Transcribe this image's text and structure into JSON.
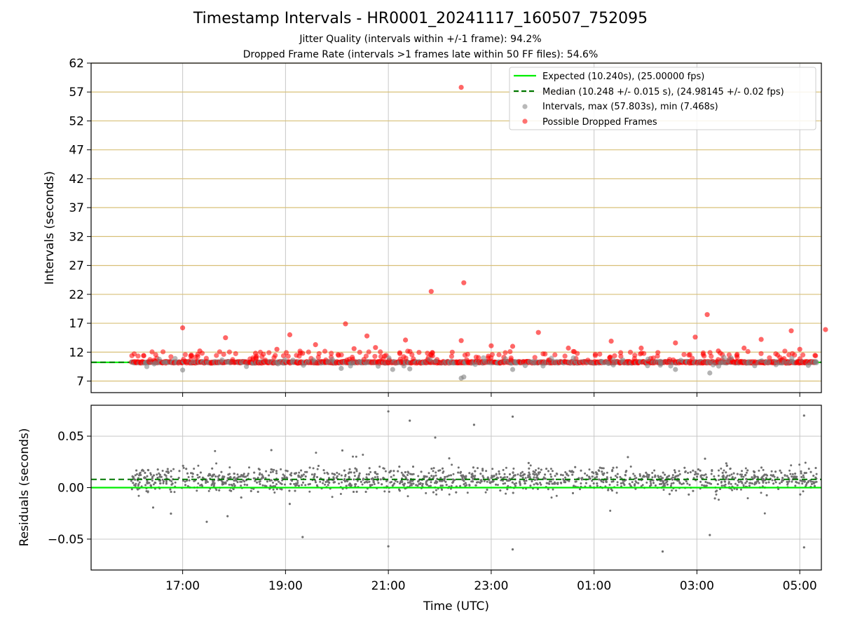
{
  "figure": {
    "title": "Timestamp Intervals - HR0001_20241117_160507_752095",
    "subtitle_1": "Jitter Quality (intervals within +/-1 frame): 94.2%",
    "subtitle_2": "Dropped Frame Rate (intervals >1 frames late within 50 FF files): 54.6%"
  },
  "colors": {
    "expected": "#00ee00",
    "median": "#007700",
    "intervals": "#808080",
    "dropped": "#ff0000",
    "hgrid": "#d8c078",
    "vgrid": "#c8c8c8",
    "residual_points": "#707070"
  },
  "chart_data": [
    {
      "type": "scatter",
      "ylabel": "Intervals (seconds)",
      "xlabel": "",
      "x_start_utc": "16:00",
      "x_end_utc": "05:20",
      "xlim_hours_from_16": [
        -0.78,
        13.42
      ],
      "ylim": [
        5,
        62
      ],
      "yticks": [
        "7",
        "12",
        "17",
        "22",
        "27",
        "32",
        "37",
        "42",
        "47",
        "52",
        "57",
        "62"
      ],
      "grid": true,
      "legend_position": "top-right",
      "legend": [
        "Expected (10.240s), (25.00000 fps)",
        "Median (10.248 +/- 0.015 s), (24.98145 +/- 0.02 fps)",
        "Intervals, max (57.803s), min (7.468s)",
        "Possible Dropped Frames"
      ],
      "expected_interval": 10.24,
      "median_interval": 10.248,
      "max_interval": 57.803,
      "min_interval": 7.468,
      "dropped_outliers": [
        {
          "x_utc": "17:00",
          "y": 16.2
        },
        {
          "x_utc": "17:20",
          "y": 12.2
        },
        {
          "x_utc": "17:50",
          "y": 14.5
        },
        {
          "x_utc": "18:25",
          "y": 11.8
        },
        {
          "x_utc": "18:50",
          "y": 12.5
        },
        {
          "x_utc": "19:05",
          "y": 15.0
        },
        {
          "x_utc": "19:20",
          "y": 11.8
        },
        {
          "x_utc": "19:35",
          "y": 13.3
        },
        {
          "x_utc": "20:10",
          "y": 16.9
        },
        {
          "x_utc": "20:20",
          "y": 12.6
        },
        {
          "x_utc": "20:35",
          "y": 14.8
        },
        {
          "x_utc": "20:45",
          "y": 12.8
        },
        {
          "x_utc": "21:20",
          "y": 14.1
        },
        {
          "x_utc": "21:50",
          "y": 22.5
        },
        {
          "x_utc": "22:25",
          "y": 57.8
        },
        {
          "x_utc": "22:28",
          "y": 24.0
        },
        {
          "x_utc": "22:25",
          "y": 14.0
        },
        {
          "x_utc": "23:00",
          "y": 13.1
        },
        {
          "x_utc": "23:25",
          "y": 13.0
        },
        {
          "x_utc": "23:55",
          "y": 15.4
        },
        {
          "x_utc": "00:30",
          "y": 12.7
        },
        {
          "x_utc": "01:20",
          "y": 13.9
        },
        {
          "x_utc": "01:55",
          "y": 12.7
        },
        {
          "x_utc": "02:35",
          "y": 13.6
        },
        {
          "x_utc": "02:58",
          "y": 14.6
        },
        {
          "x_utc": "03:12",
          "y": 18.5
        },
        {
          "x_utc": "03:25",
          "y": 12.2
        },
        {
          "x_utc": "03:55",
          "y": 12.7
        },
        {
          "x_utc": "04:15",
          "y": 14.2
        },
        {
          "x_utc": "04:50",
          "y": 15.7
        },
        {
          "x_utc": "05:00",
          "y": 12.5
        },
        {
          "x_utc": "05:30",
          "y": 15.9
        }
      ],
      "low_outliers": [
        {
          "x_utc": "17:00",
          "y": 8.9
        },
        {
          "x_utc": "20:05",
          "y": 9.2
        },
        {
          "x_utc": "21:05",
          "y": 9.0
        },
        {
          "x_utc": "21:25",
          "y": 9.1
        },
        {
          "x_utc": "22:25",
          "y": 7.5
        },
        {
          "x_utc": "22:28",
          "y": 7.7
        },
        {
          "x_utc": "23:25",
          "y": 9.0
        },
        {
          "x_utc": "02:35",
          "y": 9.0
        },
        {
          "x_utc": "03:15",
          "y": 8.4
        },
        {
          "x_utc": "05:10",
          "y": 9.7
        }
      ]
    },
    {
      "type": "scatter",
      "ylabel": "Residuals (seconds)",
      "xlabel": "Time (UTC)",
      "ylim": [
        -0.08,
        0.08
      ],
      "yticks": [
        "−0.05",
        "0.00",
        "0.05"
      ],
      "xticks": [
        "17:00",
        "19:00",
        "21:00",
        "23:00",
        "01:00",
        "03:00",
        "05:00"
      ],
      "expected_residual": 0.0,
      "median_residual": 0.008,
      "residual_outliers": [
        {
          "x_utc": "21:00",
          "y": 0.074
        },
        {
          "x_utc": "21:25",
          "y": 0.065
        },
        {
          "x_utc": "22:40",
          "y": 0.061
        },
        {
          "x_utc": "23:25",
          "y": 0.069
        },
        {
          "x_utc": "05:05",
          "y": 0.07
        },
        {
          "x_utc": "21:00",
          "y": -0.057
        },
        {
          "x_utc": "23:25",
          "y": -0.06
        },
        {
          "x_utc": "02:20",
          "y": -0.062
        },
        {
          "x_utc": "05:05",
          "y": -0.058
        },
        {
          "x_utc": "19:20",
          "y": -0.048
        },
        {
          "x_utc": "03:15",
          "y": -0.046
        }
      ]
    }
  ]
}
